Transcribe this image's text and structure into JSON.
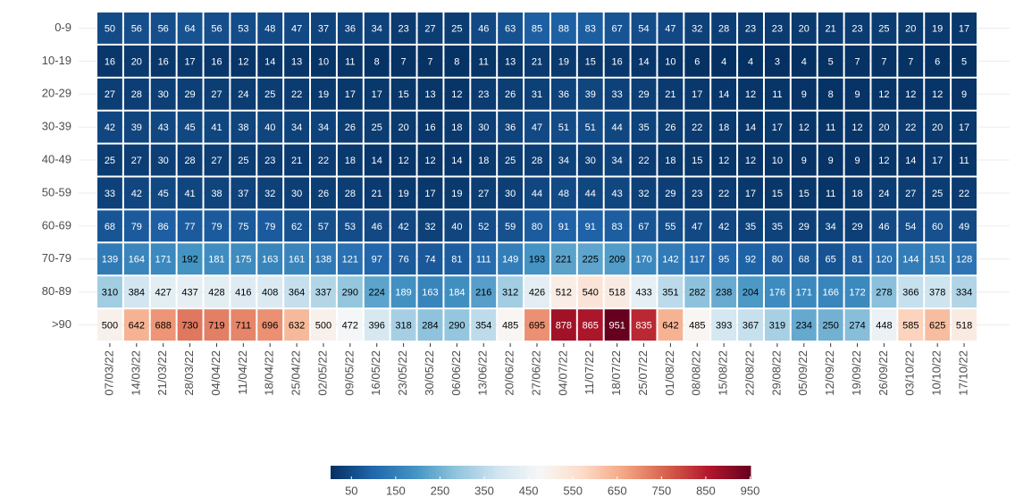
{
  "chart_data": {
    "type": "heatmap",
    "categories": [
      "07/03/22",
      "14/03/22",
      "21/03/22",
      "28/03/22",
      "04/04/22",
      "11/04/22",
      "18/04/22",
      "25/04/22",
      "02/05/22",
      "09/05/22",
      "16/05/22",
      "23/05/22",
      "30/05/22",
      "06/06/22",
      "13/06/22",
      "20/06/22",
      "27/06/22",
      "04/07/22",
      "11/07/22",
      "18/07/22",
      "25/07/22",
      "01/08/22",
      "08/08/22",
      "15/08/22",
      "22/08/22",
      "29/08/22",
      "05/09/22",
      "12/09/22",
      "19/09/22",
      "26/09/22",
      "03/10/22",
      "10/10/22",
      "17/10/22"
    ],
    "series": [
      {
        "name": "0-9",
        "values": [
          50,
          56,
          56,
          64,
          56,
          53,
          48,
          47,
          37,
          36,
          34,
          23,
          27,
          25,
          46,
          63,
          85,
          88,
          83,
          67,
          54,
          47,
          32,
          28,
          23,
          23,
          20,
          21,
          23,
          25,
          20,
          19,
          17
        ]
      },
      {
        "name": "10-19",
        "values": [
          16,
          20,
          16,
          17,
          16,
          12,
          14,
          13,
          10,
          11,
          8,
          7,
          7,
          8,
          11,
          13,
          21,
          19,
          15,
          16,
          14,
          10,
          6,
          4,
          4,
          3,
          4,
          5,
          7,
          7,
          7,
          6,
          5
        ]
      },
      {
        "name": "20-29",
        "values": [
          27,
          28,
          30,
          29,
          27,
          24,
          25,
          22,
          19,
          17,
          17,
          15,
          13,
          12,
          23,
          26,
          31,
          36,
          39,
          33,
          29,
          21,
          17,
          14,
          12,
          11,
          9,
          8,
          9,
          12,
          12,
          12,
          9
        ]
      },
      {
        "name": "30-39",
        "values": [
          42,
          39,
          43,
          45,
          41,
          38,
          40,
          34,
          34,
          26,
          25,
          20,
          16,
          18,
          30,
          36,
          47,
          51,
          51,
          44,
          35,
          26,
          22,
          18,
          14,
          17,
          12,
          11,
          12,
          20,
          22,
          20,
          17
        ]
      },
      {
        "name": "40-49",
        "values": [
          25,
          27,
          30,
          28,
          27,
          25,
          23,
          21,
          22,
          18,
          14,
          12,
          12,
          14,
          18,
          25,
          28,
          34,
          30,
          34,
          22,
          18,
          15,
          12,
          12,
          10,
          9,
          9,
          9,
          12,
          14,
          17,
          11
        ]
      },
      {
        "name": "50-59",
        "values": [
          33,
          42,
          45,
          41,
          38,
          37,
          32,
          30,
          26,
          28,
          21,
          19,
          17,
          19,
          27,
          30,
          44,
          48,
          44,
          43,
          32,
          29,
          23,
          22,
          17,
          15,
          15,
          11,
          18,
          24,
          27,
          25,
          22
        ]
      },
      {
        "name": "60-69",
        "values": [
          68,
          79,
          86,
          77,
          79,
          75,
          79,
          62,
          57,
          53,
          46,
          42,
          32,
          40,
          52,
          59,
          80,
          91,
          91,
          83,
          67,
          55,
          47,
          42,
          35,
          35,
          29,
          34,
          29,
          46,
          54,
          60,
          49
        ]
      },
      {
        "name": "70-79",
        "values": [
          139,
          164,
          171,
          192,
          181,
          175,
          163,
          161,
          138,
          121,
          97,
          76,
          74,
          81,
          111,
          149,
          193,
          221,
          225,
          209,
          170,
          142,
          117,
          95,
          92,
          80,
          68,
          65,
          81,
          120,
          144,
          151,
          128
        ]
      },
      {
        "name": "80-89",
        "values": [
          310,
          384,
          427,
          437,
          428,
          416,
          408,
          364,
          337,
          290,
          224,
          189,
          163,
          184,
          216,
          312,
          426,
          512,
          540,
          518,
          433,
          351,
          282,
          238,
          204,
          176,
          171,
          166,
          172,
          278,
          366,
          378,
          334
        ]
      },
      {
        "name": ">90",
        "values": [
          500,
          642,
          688,
          730,
          719,
          711,
          696,
          632,
          500,
          472,
          396,
          318,
          284,
          290,
          354,
          485,
          695,
          878,
          865,
          951,
          835,
          642,
          485,
          393,
          367,
          319,
          234,
          250,
          274,
          448,
          585,
          625,
          518
        ]
      }
    ],
    "colors": [
      "#053061",
      "#2166ac",
      "#4393c3",
      "#92c5de",
      "#d1e5f0",
      "#f7f7f7",
      "#fddbc7",
      "#f4a582",
      "#d6604d",
      "#b2182b",
      "#67001f"
    ],
    "colorbar_ticks": [
      50,
      150,
      250,
      350,
      450,
      550,
      650,
      750,
      850,
      950
    ]
  }
}
